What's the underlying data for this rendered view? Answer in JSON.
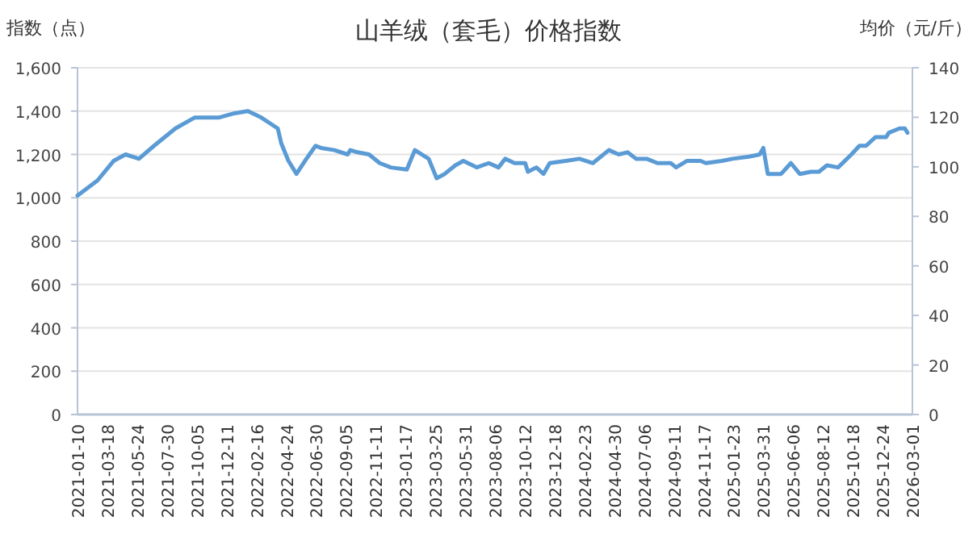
{
  "chart_data": {
    "type": "line",
    "title": "山羊绒（套毛）价格指数",
    "ylabel": "指数（点）",
    "y2label": "均价（元/斤）",
    "x": [
      "2021-01-10",
      "2021-02-24",
      "2021-04-01",
      "2021-04-28",
      "2021-05-28",
      "2021-07-01",
      "2021-08-18",
      "2021-09-30",
      "2021-11-23",
      "2021-12-29",
      "2022-01-28",
      "2022-02-27",
      "2022-04-05",
      "2022-04-13",
      "2022-04-29",
      "2022-05-17",
      "2022-06-05",
      "2022-06-29",
      "2022-07-11",
      "2022-08-10",
      "2022-09-09",
      "2022-09-15",
      "2022-10-01",
      "2022-10-27",
      "2022-11-20",
      "2022-12-15",
      "2023-01-20",
      "2023-02-07",
      "2023-03-10",
      "2023-03-28",
      "2023-04-15",
      "2023-05-09",
      "2023-05-27",
      "2023-06-26",
      "2023-07-23",
      "2023-08-14",
      "2023-08-29",
      "2023-09-19",
      "2023-10-13",
      "2023-10-19",
      "2023-11-07",
      "2023-11-23",
      "2023-12-07",
      "2024-01-12",
      "2024-02-12",
      "2024-03-13",
      "2024-04-18",
      "2024-05-10",
      "2024-05-30",
      "2024-06-18",
      "2024-07-12",
      "2024-08-05",
      "2024-09-04",
      "2024-09-16",
      "2024-10-10",
      "2024-11-10",
      "2024-11-22",
      "2024-12-28",
      "2025-01-21",
      "2025-02-27",
      "2025-03-23",
      "2025-03-31",
      "2025-04-10",
      "2025-05-10",
      "2025-06-01",
      "2025-06-21",
      "2025-07-16",
      "2025-08-03",
      "2025-08-21",
      "2025-09-15",
      "2025-10-15",
      "2025-11-02",
      "2025-11-17",
      "2025-12-08",
      "2026-01-01",
      "2026-01-07",
      "2026-01-31",
      "2026-02-12",
      "2026-02-18"
    ],
    "series": [
      {
        "color": "#5b9bd5",
        "values": [
          1010,
          1080,
          1170,
          1200,
          1180,
          1240,
          1320,
          1370,
          1370,
          1390,
          1400,
          1370,
          1320,
          1250,
          1170,
          1110,
          1170,
          1240,
          1230,
          1220,
          1200,
          1220,
          1210,
          1200,
          1160,
          1140,
          1130,
          1220,
          1180,
          1090,
          1110,
          1150,
          1170,
          1140,
          1160,
          1140,
          1180,
          1160,
          1160,
          1120,
          1140,
          1110,
          1160,
          1170,
          1180,
          1160,
          1220,
          1200,
          1210,
          1180,
          1180,
          1160,
          1160,
          1140,
          1170,
          1170,
          1160,
          1170,
          1180,
          1190,
          1200,
          1230,
          1110,
          1110,
          1160,
          1110,
          1120,
          1120,
          1150,
          1140,
          1200,
          1240,
          1240,
          1280,
          1280,
          1300,
          1320,
          1320,
          1300
        ]
      }
    ],
    "xlim": [
      "2021-01-10",
      "2026-03-01"
    ],
    "xticks": [
      "2021-01-10",
      "2021-03-18",
      "2021-05-24",
      "2021-07-30",
      "2021-10-05",
      "2021-12-11",
      "2022-02-16",
      "2022-04-24",
      "2022-06-30",
      "2022-09-05",
      "2022-11-11",
      "2023-01-17",
      "2023-03-25",
      "2023-05-31",
      "2023-08-06",
      "2023-10-12",
      "2023-12-18",
      "2024-02-23",
      "2024-04-30",
      "2024-07-06",
      "2024-09-11",
      "2024-11-17",
      "2025-01-23",
      "2025-03-31",
      "2025-06-06",
      "2025-08-12",
      "2025-10-18",
      "2025-12-24",
      "2026-03-01"
    ],
    "ylim": [
      0,
      1600
    ],
    "yticks": [
      0,
      200,
      400,
      600,
      800,
      {
        "value": 1000,
        "label": "1,000"
      },
      {
        "value": 1200,
        "label": "1,200"
      },
      {
        "value": 1400,
        "label": "1,400"
      },
      {
        "value": 1600,
        "label": "1,600"
      }
    ],
    "y2lim": [
      0,
      140
    ],
    "y2ticks": [
      0,
      20,
      40,
      60,
      80,
      100,
      120,
      140
    ],
    "grid": "y",
    "line_style": "solid"
  }
}
